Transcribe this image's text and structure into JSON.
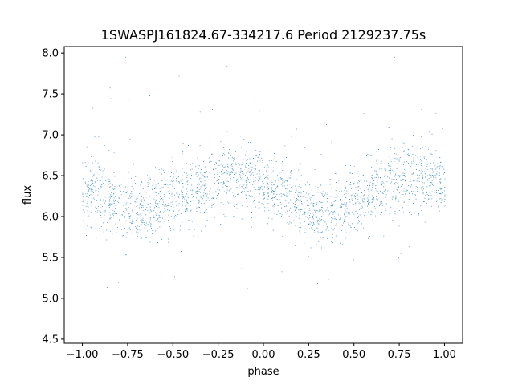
{
  "chart_data": {
    "type": "scatter",
    "title": "1SWASPJ161824.67-334217.6 Period 2129237.75s",
    "xlabel": "phase",
    "ylabel": "flux",
    "xlim": [
      -1.1,
      1.1
    ],
    "ylim": [
      4.45,
      8.08
    ],
    "xticks": [
      -1.0,
      -0.75,
      -0.5,
      -0.25,
      0.0,
      0.25,
      0.5,
      0.75,
      1.0
    ],
    "xtick_labels": [
      "−1.00",
      "−0.75",
      "−0.50",
      "−0.25",
      "0.00",
      "0.25",
      "0.50",
      "0.75",
      "1.00"
    ],
    "yticks": [
      4.5,
      5.0,
      5.5,
      6.0,
      6.5,
      7.0,
      7.5,
      8.0
    ],
    "ytick_labels": [
      "4.5",
      "5.0",
      "5.5",
      "6.0",
      "6.5",
      "7.0",
      "7.5",
      "8.0"
    ],
    "grid": false,
    "marker_color": "#1f77b4",
    "series": [
      {
        "x_range": [
          -1.0,
          1.0
        ],
        "phase_folded": true,
        "profile_phase": [
          0.0,
          0.1,
          0.2,
          0.3,
          0.4,
          0.5,
          0.6,
          0.7,
          0.8,
          0.9,
          1.0
        ],
        "profile_flux": [
          6.35,
          6.25,
          6.15,
          6.05,
          6.1,
          6.2,
          6.3,
          6.4,
          6.5,
          6.5,
          6.45
        ],
        "scatter_std": 0.2,
        "flux_min": 4.62,
        "flux_max": 7.95
      }
    ]
  }
}
